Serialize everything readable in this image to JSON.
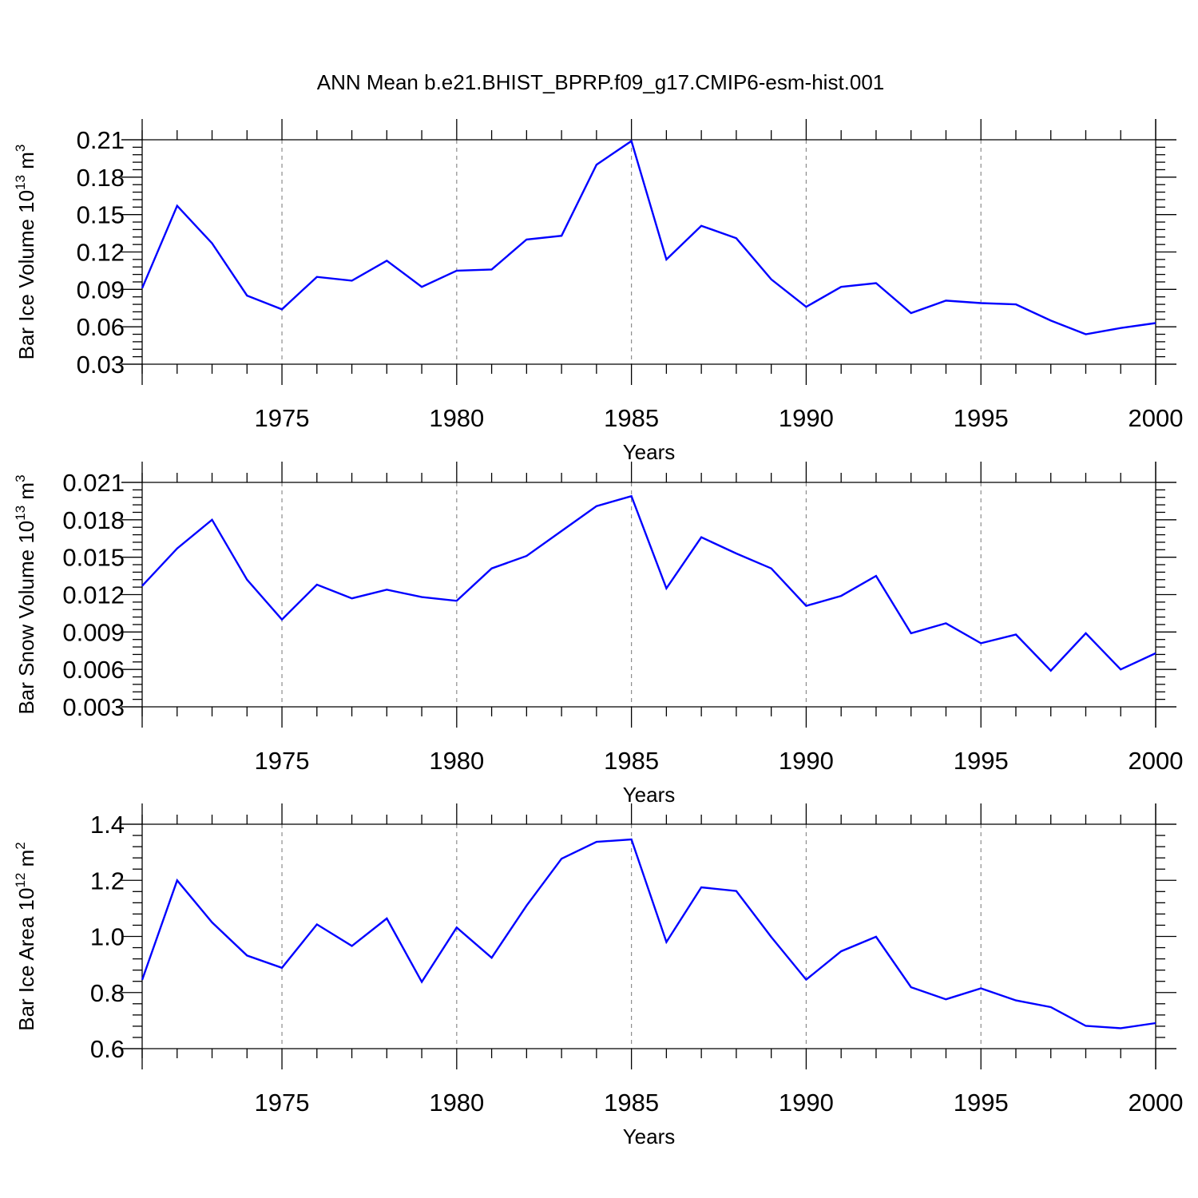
{
  "figure": {
    "title": "ANN Mean b.e21.BHIST_BPRP.f09_g17.CMIP6-esm-hist.001"
  },
  "colors": {
    "series": "#0000ff",
    "axis": "#000000",
    "grid": "#8c8c8c"
  },
  "chart_data": [
    {
      "type": "line",
      "title": "",
      "xlabel": "Years",
      "ylabel": {
        "prefix": "Bar Ice Volume 10",
        "exponent": "13",
        "unit": " m",
        "unit_exponent": "3"
      },
      "xlim": [
        1971,
        2000
      ],
      "ylim": [
        0.03,
        0.21
      ],
      "xticks": [
        1975,
        1980,
        1985,
        1990,
        1995,
        2000
      ],
      "yticks": [
        0.03,
        0.06,
        0.09,
        0.12,
        0.15,
        0.18,
        0.21
      ],
      "ytick_labels": [
        "0.03",
        "0.06",
        "0.09",
        "0.12",
        "0.15",
        "0.18",
        "0.21"
      ],
      "grid": "vertical dashed at major x ticks",
      "x": [
        1971,
        1972,
        1973,
        1974,
        1975,
        1976,
        1977,
        1978,
        1979,
        1980,
        1981,
        1982,
        1983,
        1984,
        1985,
        1986,
        1987,
        1988,
        1989,
        1990,
        1991,
        1992,
        1993,
        1994,
        1995,
        1996,
        1997,
        1998,
        1999,
        2000
      ],
      "values": [
        0.091,
        0.157,
        0.127,
        0.085,
        0.074,
        0.1,
        0.097,
        0.113,
        0.092,
        0.105,
        0.106,
        0.13,
        0.133,
        0.19,
        0.209,
        0.114,
        0.141,
        0.131,
        0.098,
        0.076,
        0.092,
        0.095,
        0.071,
        0.081,
        0.079,
        0.078,
        0.065,
        0.054,
        0.059,
        0.063
      ]
    },
    {
      "type": "line",
      "title": "",
      "xlabel": "Years",
      "ylabel": {
        "prefix": "Bar Snow Volume 10",
        "exponent": "13",
        "unit": " m",
        "unit_exponent": "3"
      },
      "xlim": [
        1971,
        2000
      ],
      "ylim": [
        0.003,
        0.021
      ],
      "xticks": [
        1975,
        1980,
        1985,
        1990,
        1995,
        2000
      ],
      "yticks": [
        0.003,
        0.006,
        0.009,
        0.012,
        0.015,
        0.018,
        0.021
      ],
      "ytick_labels": [
        "0.003",
        "0.006",
        "0.009",
        "0.012",
        "0.015",
        "0.018",
        "0.021"
      ],
      "grid": "vertical dashed at major x ticks",
      "x": [
        1971,
        1972,
        1973,
        1974,
        1975,
        1976,
        1977,
        1978,
        1979,
        1980,
        1981,
        1982,
        1983,
        1984,
        1985,
        1986,
        1987,
        1988,
        1989,
        1990,
        1991,
        1992,
        1993,
        1994,
        1995,
        1996,
        1997,
        1998,
        1999,
        2000
      ],
      "values": [
        0.0127,
        0.0157,
        0.018,
        0.0132,
        0.01,
        0.0128,
        0.0117,
        0.0124,
        0.0118,
        0.0115,
        0.0141,
        0.0151,
        0.0171,
        0.0191,
        0.0199,
        0.0125,
        0.0166,
        0.0153,
        0.0141,
        0.0111,
        0.0119,
        0.0135,
        0.0089,
        0.0097,
        0.0081,
        0.0088,
        0.0059,
        0.0089,
        0.006,
        0.0073
      ]
    },
    {
      "type": "line",
      "title": "",
      "xlabel": "Years",
      "ylabel": {
        "prefix": "Bar Ice Area 10",
        "exponent": "12",
        "unit": " m",
        "unit_exponent": "2"
      },
      "xlim": [
        1971,
        2000
      ],
      "ylim": [
        0.6,
        1.4
      ],
      "xticks": [
        1975,
        1980,
        1985,
        1990,
        1995,
        2000
      ],
      "yticks": [
        0.6,
        0.8,
        1.0,
        1.2,
        1.4
      ],
      "ytick_labels": [
        "0.6",
        "0.8",
        "1.0",
        "1.2",
        "1.4"
      ],
      "grid": "vertical dashed at major x ticks",
      "x": [
        1971,
        1972,
        1973,
        1974,
        1975,
        1976,
        1977,
        1978,
        1979,
        1980,
        1981,
        1982,
        1983,
        1984,
        1985,
        1986,
        1987,
        1988,
        1989,
        1990,
        1991,
        1992,
        1993,
        1994,
        1995,
        1996,
        1997,
        1998,
        1999,
        2000
      ],
      "values": [
        0.845,
        1.2,
        1.05,
        0.932,
        0.888,
        1.043,
        0.966,
        1.064,
        0.838,
        1.032,
        0.924,
        1.11,
        1.277,
        1.337,
        1.346,
        0.98,
        1.175,
        1.162,
        0.998,
        0.846,
        0.947,
        0.999,
        0.819,
        0.776,
        0.815,
        0.772,
        0.748,
        0.681,
        0.673,
        0.691
      ]
    }
  ]
}
